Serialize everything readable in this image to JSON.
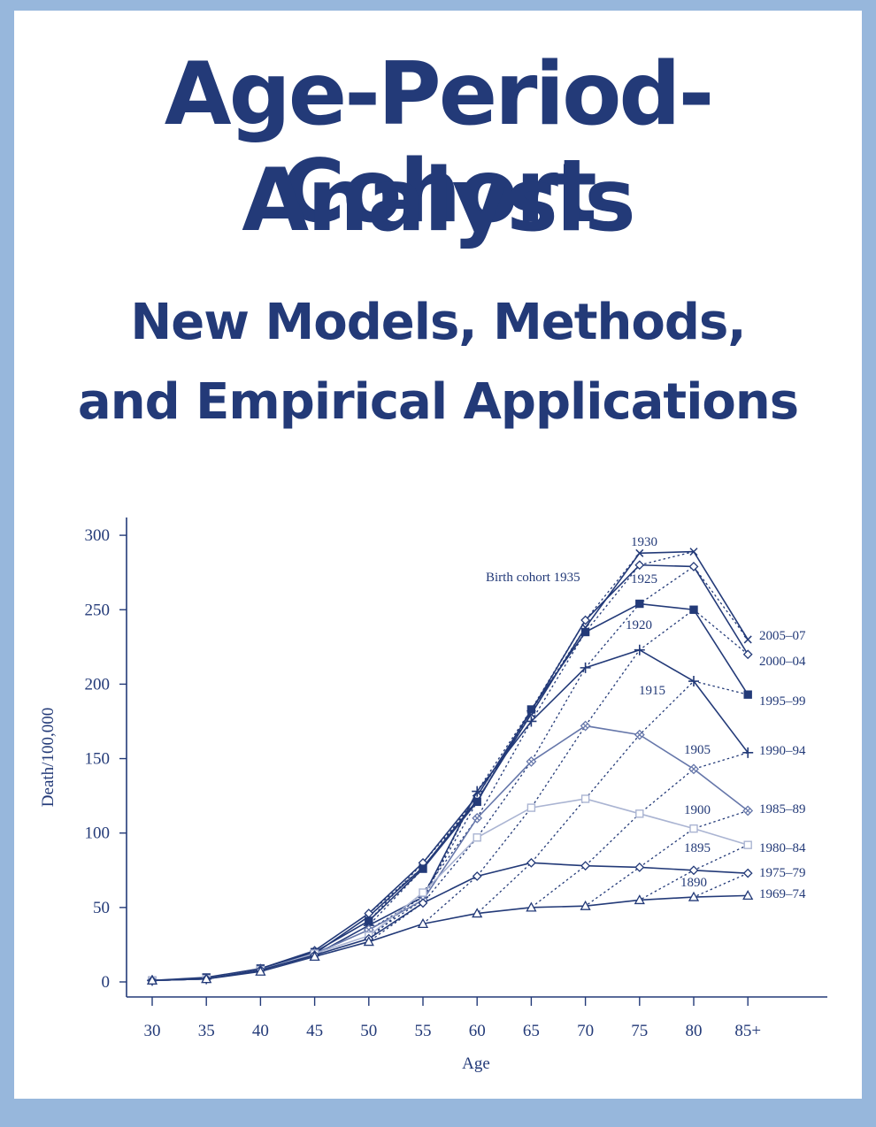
{
  "cover": {
    "title_line1": "Age-Period-Cohort",
    "title_line2": "Analysis",
    "subtitle_line1": "New Models, Methods,",
    "subtitle_line2": "and Empirical Applications"
  },
  "colors": {
    "frame": "#97b7dc",
    "ink": "#233a78",
    "light_series": "#aab4d2"
  },
  "chart_data": {
    "type": "line",
    "xlabel": "Age",
    "ylabel": "Death/100,000",
    "categories": [
      "30",
      "35",
      "40",
      "45",
      "50",
      "55",
      "60",
      "65",
      "70",
      "75",
      "80",
      "85+"
    ],
    "ylim": [
      0,
      300
    ],
    "yticks": [
      0,
      50,
      100,
      150,
      200,
      250,
      300
    ],
    "grid": false,
    "series": [
      {
        "name": "2005–07",
        "values": [
          1,
          2,
          8,
          19,
          44,
          77,
          122,
          180,
          238,
          288,
          289,
          230
        ]
      },
      {
        "name": "2000–04",
        "values": [
          1,
          2,
          9,
          21,
          46,
          80,
          125,
          182,
          243,
          280,
          279,
          220
        ]
      },
      {
        "name": "1995–99",
        "values": [
          1,
          3,
          9,
          20,
          41,
          76,
          121,
          183,
          235,
          254,
          250,
          193
        ]
      },
      {
        "name": "1990–94",
        "values": [
          1,
          2,
          8,
          18,
          38,
          57,
          128,
          175,
          211,
          223,
          202,
          154
        ]
      },
      {
        "name": "1985–89",
        "values": [
          1,
          2,
          8,
          19,
          35,
          55,
          110,
          148,
          172,
          166,
          143,
          115
        ]
      },
      {
        "name": "1980–84",
        "values": [
          1,
          2,
          8,
          19,
          31,
          60,
          97,
          117,
          123,
          113,
          103,
          92
        ]
      },
      {
        "name": "1975–79",
        "values": [
          1,
          2,
          8,
          18,
          29,
          53,
          71,
          80,
          78,
          77,
          75,
          73
        ]
      },
      {
        "name": "1969–74",
        "values": [
          1,
          2,
          7,
          17,
          27,
          39,
          46,
          50,
          51,
          55,
          57,
          58
        ]
      }
    ],
    "cohort_labels": [
      "Birth cohort 1935",
      "1930",
      "1925",
      "1920",
      "1915",
      "1905",
      "1900",
      "1895",
      "1890"
    ]
  }
}
